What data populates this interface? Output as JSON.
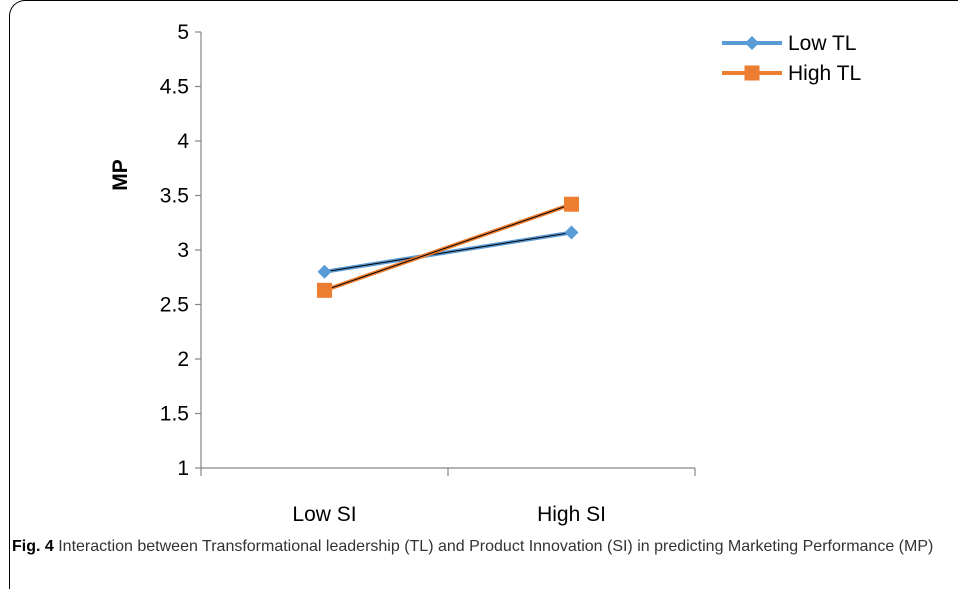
{
  "chart_data": {
    "type": "line",
    "categories": [
      "Low SI",
      "High SI"
    ],
    "series": [
      {
        "name": "Low TL",
        "values": [
          2.8,
          3.16
        ],
        "color": "#5B9BD5",
        "marker": "diamond"
      },
      {
        "name": "High TL",
        "values": [
          2.63,
          3.42
        ],
        "color": "#ED7D31",
        "marker": "square"
      }
    ],
    "ylabel": "MP",
    "xlabel": "",
    "title": "",
    "ylim": [
      1,
      5
    ],
    "yticks": [
      "1",
      "1.5",
      "2",
      "2.5",
      "3",
      "3.5",
      "4",
      "4.5",
      "5"
    ],
    "grid": false,
    "legend": "top-right"
  },
  "caption": {
    "label": "Fig. 4",
    "text": " Interaction between Transformational leadership (TL) and Product Innovation (SI) in predicting Marketing Performance (MP)"
  }
}
